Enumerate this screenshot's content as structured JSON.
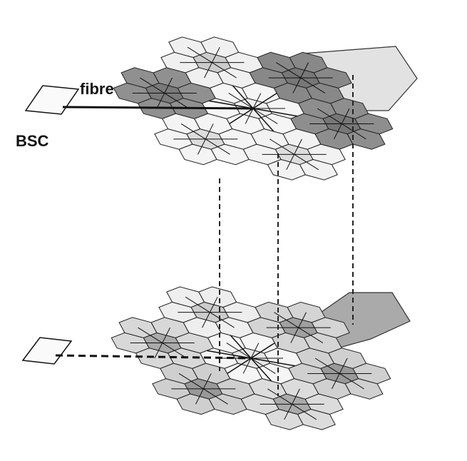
{
  "labels": {
    "link": "fibre",
    "controller": "BSC"
  }
}
